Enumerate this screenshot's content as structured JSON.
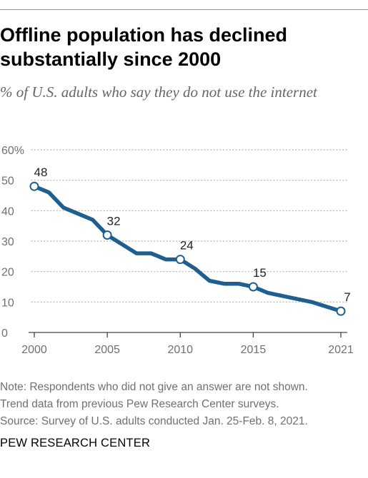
{
  "header": {
    "title_line1": "Offline population has declined",
    "title_line2": "substantially since 2000",
    "subtitle": "% of U.S. adults who say they do not use the internet"
  },
  "notes": {
    "line1": "Note: Respondents who did not give an answer are not shown.",
    "line2": "Trend data from previous Pew Research Center surveys.",
    "line3": "Source: Survey of U.S. adults conducted Jan. 25-Feb. 8, 2021."
  },
  "footer": {
    "brand": "PEW RESEARCH CENTER"
  },
  "chart_data": {
    "type": "line",
    "title": "Offline population has declined substantially since 2000",
    "xlabel": "",
    "ylabel": "",
    "xlim": [
      2000,
      2021
    ],
    "ylim": [
      0,
      60
    ],
    "y_ticks": [
      "0",
      "10",
      "20",
      "30",
      "40",
      "50",
      "60%"
    ],
    "y_tick_values": [
      0,
      10,
      20,
      30,
      40,
      50,
      60
    ],
    "x_ticks": [
      "2000",
      "2005",
      "2010",
      "2015",
      "2021"
    ],
    "x_tick_values": [
      2000,
      2005,
      2010,
      2015,
      2021
    ],
    "grid": "horizontal dotted",
    "line_color": "#1f5f8f",
    "series": [
      {
        "x": [
          2000,
          2001,
          2002,
          2003,
          2004,
          2005,
          2006,
          2007,
          2008,
          2009,
          2010,
          2011,
          2012,
          2013,
          2014,
          2015,
          2016,
          2017,
          2018,
          2019,
          2020,
          2021
        ],
        "values": [
          48,
          46,
          41,
          39,
          37,
          32,
          29,
          26,
          26,
          24,
          24,
          21,
          17,
          16,
          16,
          15,
          13,
          12,
          11,
          10,
          8.5,
          7
        ]
      }
    ],
    "labeled_points": [
      {
        "x": 2000,
        "y": 48,
        "label": "48"
      },
      {
        "x": 2005,
        "y": 32,
        "label": "32"
      },
      {
        "x": 2010,
        "y": 24,
        "label": "24"
      },
      {
        "x": 2015,
        "y": 15,
        "label": "15"
      },
      {
        "x": 2021,
        "y": 7,
        "label": "7"
      }
    ]
  }
}
